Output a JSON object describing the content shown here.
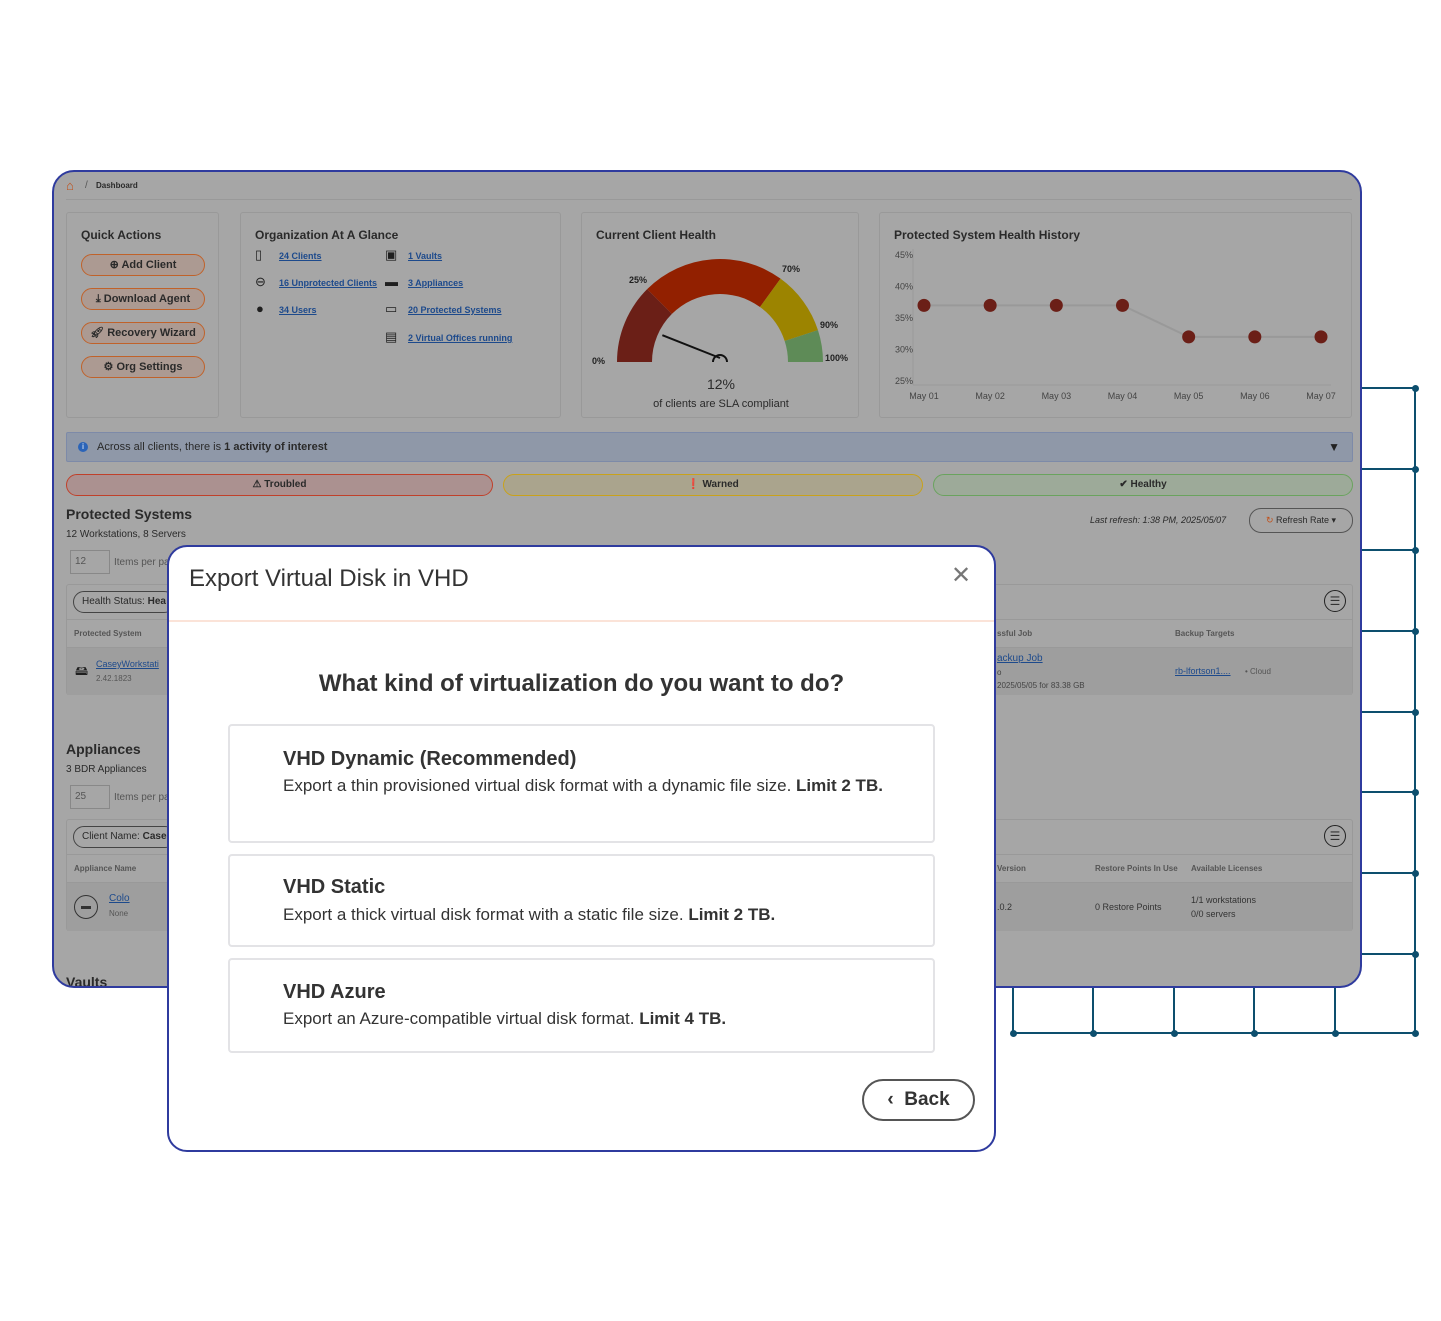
{
  "breadcrumb": {
    "home_icon": "home-icon",
    "current": "Dashboard"
  },
  "quick_actions": {
    "title": "Quick Actions",
    "buttons": [
      {
        "label": "Add Client",
        "icon": "plus-circle-icon"
      },
      {
        "label": "Download Agent",
        "icon": "download-icon"
      },
      {
        "label": "Recovery Wizard",
        "icon": "rocket-icon"
      },
      {
        "label": "Org Settings",
        "icon": "gear-icon"
      }
    ]
  },
  "glance": {
    "title": "Organization At A Glance",
    "items": [
      {
        "label": "24 Clients",
        "icon": "address-book-icon"
      },
      {
        "label": "16 Unprotected Clients",
        "icon": "minus-circle-icon"
      },
      {
        "label": "34 Users",
        "icon": "user-icon"
      },
      {
        "label": "1 Vaults",
        "icon": "vault-icon"
      },
      {
        "label": "3 Appliances",
        "icon": "appliance-icon"
      },
      {
        "label": "20 Protected Systems",
        "icon": "monitor-icon"
      },
      {
        "label": "2 Virtual Offices running",
        "icon": "virtual-office-icon"
      }
    ]
  },
  "client_health": {
    "title": "Current Client Health",
    "value": "12%",
    "caption": "of clients are SLA compliant",
    "needle_percent": 12,
    "bands": [
      {
        "from": 0,
        "to": 25,
        "color": "#6b1f17"
      },
      {
        "from": 25,
        "to": 70,
        "color": "#922000"
      },
      {
        "from": 70,
        "to": 90,
        "color": "#9c8400"
      },
      {
        "from": 90,
        "to": 100,
        "color": "#5e8b57"
      }
    ],
    "labels": [
      "0%",
      "25%",
      "70%",
      "90%",
      "100%"
    ]
  },
  "chart_data": {
    "type": "line",
    "title": "Protected System Health History",
    "categories": [
      "May 01",
      "May 02",
      "May 03",
      "May 04",
      "May 05",
      "May 06",
      "May 07"
    ],
    "values": [
      37,
      37,
      37,
      37,
      32,
      32,
      32
    ],
    "ylim": [
      25,
      45
    ],
    "yticks": [
      "45%",
      "40%",
      "35%",
      "30%",
      "25%"
    ],
    "color": "#6b1f17",
    "grid": false
  },
  "banner": {
    "text_prefix": "Across all clients, there is ",
    "text_bold": "1 activity of interest"
  },
  "status": {
    "troubled": "Troubled",
    "warned": "Warned",
    "healthy": "Healthy"
  },
  "protected_systems": {
    "title": "Protected Systems",
    "subtitle": "12 Workstations, 8 Servers",
    "per_page": "12",
    "per_page_label": "Items per pa",
    "last_refresh": "Last refresh: 1:38 PM, 2025/05/07",
    "refresh_button": "Refresh Rate",
    "filter_label": "Health Status:",
    "filter_value": "Hea",
    "headers": {
      "system": "Protected System",
      "job": "ssful Job",
      "targets": "Backup Targets"
    },
    "row": {
      "name": "CaseyWorkstati",
      "version": "2.42.1823",
      "job": "ackup Job",
      "job_sub": "o",
      "job_date": "2025/05/05 for 83.38 GB",
      "target": "rb-lfortson1....",
      "target_type": "• Cloud"
    }
  },
  "appliances": {
    "title": "Appliances",
    "subtitle": "3 BDR Appliances",
    "per_page": "25",
    "per_page_label": "Items per pa",
    "filter_label": "Client Name:",
    "filter_value": "Case",
    "headers": {
      "name": "Appliance Name",
      "version": "Version",
      "restore": "Restore Points In Use",
      "licenses": "Available Licenses"
    },
    "row": {
      "name": "Colo",
      "sub": "None",
      "version": ".0.2",
      "restore": "0 Restore Points",
      "lic1": "1/1 workstations",
      "lic2": "0/0 servers"
    }
  },
  "vaults": {
    "title": "Vaults"
  },
  "modal": {
    "title": "Export Virtual Disk in VHD",
    "question": "What kind of virtualization do you want to do?",
    "options": [
      {
        "title": "VHD Dynamic (Recommended)",
        "desc": "Export a thin provisioned virtual disk format with a dynamic file size. ",
        "limit": "Limit 2 TB."
      },
      {
        "title": "VHD Static",
        "desc": "Export a thick virtual disk format with a static file size. ",
        "limit": "Limit 2 TB."
      },
      {
        "title": "VHD Azure",
        "desc": "Export an Azure-compatible virtual disk format. ",
        "limit": "Limit 4 TB."
      }
    ],
    "back": "Back"
  }
}
